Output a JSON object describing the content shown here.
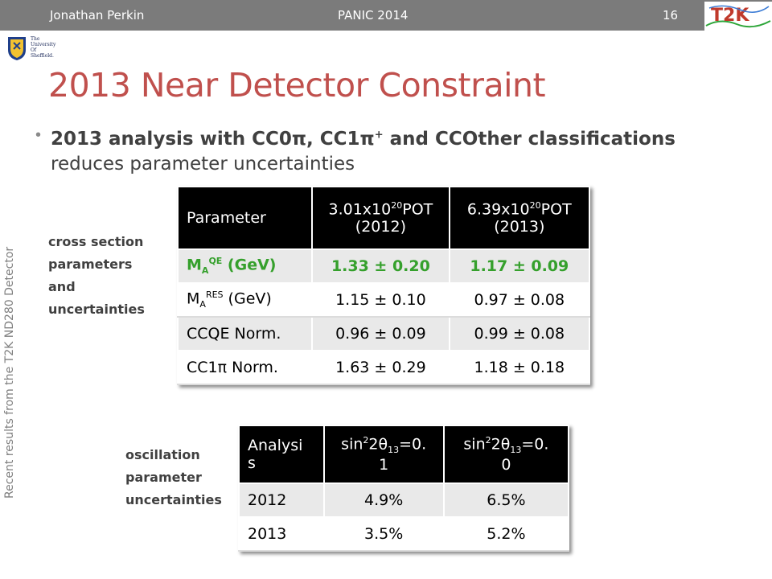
{
  "header": {
    "author": "Jonathan Perkin",
    "conference": "PANIC 2014",
    "page_number": "16",
    "logo_text": "T2K"
  },
  "university": {
    "line1": "The",
    "line2": "University",
    "line3": "Of",
    "line4": "Sheffield."
  },
  "slide": {
    "title": "2013 Near Detector Constraint",
    "bullet_bold_pre": "2013 analysis with CC0π, CC1π",
    "bullet_bold_sup": "+",
    "bullet_bold_post": " and CCOther classifications",
    "bullet_normal": "reduces parameter uncertainties",
    "side_vertical": "Recent results from the T2K ND280 Detector",
    "label_xsec_1": "cross section",
    "label_xsec_2": "parameters",
    "label_xsec_3": "and",
    "label_xsec_4": "uncertainties",
    "label_osc_1": "oscillation",
    "label_osc_2": "parameter",
    "label_osc_3": "uncertainties"
  },
  "table1": {
    "headers": {
      "c0": "Parameter",
      "c1_pre": "3.01x10",
      "c1_sup": "20",
      "c1_post": "POT",
      "c1_line2": "(2012)",
      "c2_pre": "6.39x10",
      "c2_sup": "20",
      "c2_post": "POT",
      "c2_line2": "(2013)"
    },
    "rows": [
      {
        "param_main": "M",
        "param_sub": "A",
        "param_sup": "QE",
        "param_unit": " (GeV)",
        "v2012": "1.33 ± 0.20",
        "v2013": "1.17 ± 0.09"
      },
      {
        "param_main": "M",
        "param_sub": "A",
        "param_sup": "RES",
        "param_unit": " (GeV)",
        "v2012": "1.15 ± 0.10",
        "v2013": "0.97 ± 0.08"
      },
      {
        "param": "CCQE Norm.",
        "v2012": "0.96 ± 0.09",
        "v2013": "0.99 ± 0.08"
      },
      {
        "param": "CC1π Norm.",
        "v2012": "1.63 ± 0.29",
        "v2013": "1.18 ± 0.18"
      }
    ]
  },
  "table2": {
    "headers": {
      "c0_line1": "Analysi",
      "c0_line2": "s",
      "c1_pre": "sin",
      "c1_sup": "2",
      "c1_mid": "2θ",
      "c1_sub": "13",
      "c1_post": "=0.",
      "c1_line2": "1",
      "c2_pre": "sin",
      "c2_sup": "2",
      "c2_mid": "2θ",
      "c2_sub": "13",
      "c2_post": "=0.",
      "c2_line2": "0"
    },
    "rows": [
      {
        "year": "2012",
        "v1": "4.9%",
        "v2": "6.5%"
      },
      {
        "year": "2013",
        "v1": "3.5%",
        "v2": "5.2%"
      }
    ]
  },
  "colors": {
    "title": "#c0504d",
    "header_bar": "#7b7b7b",
    "highlight_green": "#35a02c",
    "table_header_bg": "#000000",
    "row_shade": "#e9e9e9"
  }
}
